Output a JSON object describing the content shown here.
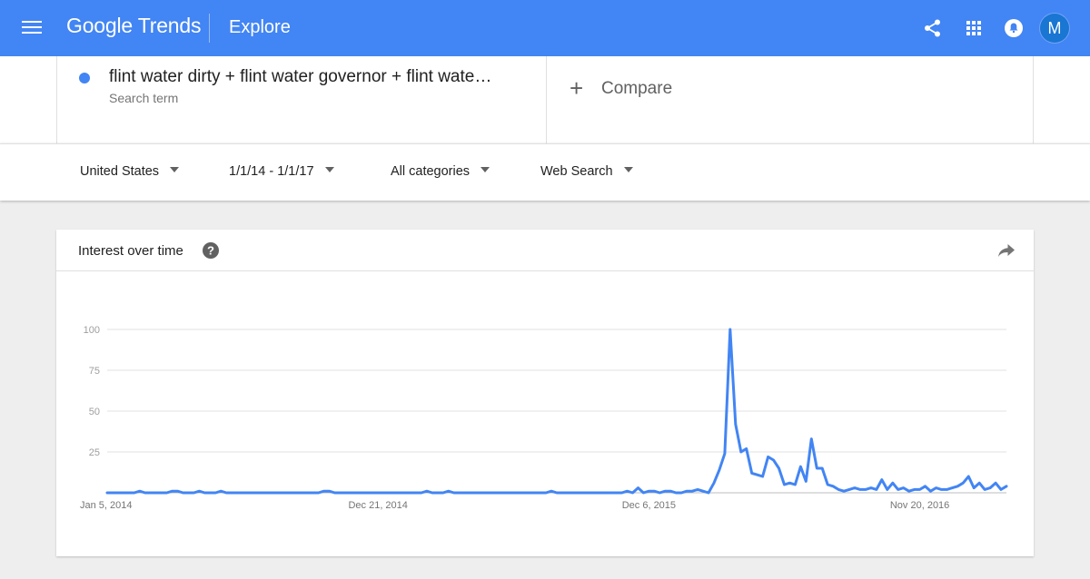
{
  "header": {
    "logo": "Google Trends",
    "section": "Explore",
    "avatar_letter": "M",
    "icons": [
      "menu-icon",
      "share-icon",
      "apps-icon",
      "notifications-icon"
    ],
    "accent_color": "#4285f4"
  },
  "search_term": {
    "text": "flint water dirty + flint water governor + flint wate…",
    "type": "Search term",
    "color": "#4285f4"
  },
  "compare": {
    "label": "Compare"
  },
  "filters": [
    {
      "label": "United States"
    },
    {
      "label": "1/1/14 - 1/1/17"
    },
    {
      "label": "All categories"
    },
    {
      "label": "Web Search"
    }
  ],
  "chart_card": {
    "title": "Interest over time"
  },
  "chart_data": {
    "type": "line",
    "y_ticks": [
      "100",
      "75",
      "50",
      "25"
    ],
    "ylim": [
      0,
      100
    ],
    "x_tick_labels": [
      "Jan 5, 2014",
      "Dec 21, 2014",
      "Dec 6, 2015",
      "Nov 20, 2016"
    ],
    "x_tick_indices": [
      0,
      50,
      100,
      150
    ],
    "grid": true,
    "series": [
      {
        "color": "#4285f4",
        "values": [
          0,
          0,
          0,
          0,
          0,
          0,
          1,
          0,
          0,
          0,
          0,
          0,
          1,
          1,
          0,
          0,
          0,
          1,
          0,
          0,
          0,
          1,
          0,
          0,
          0,
          0,
          0,
          0,
          0,
          0,
          0,
          0,
          0,
          0,
          0,
          0,
          0,
          0,
          0,
          0,
          1,
          1,
          0,
          0,
          0,
          0,
          0,
          0,
          0,
          0,
          0,
          0,
          0,
          0,
          0,
          0,
          0,
          0,
          0,
          1,
          0,
          0,
          0,
          1,
          0,
          0,
          0,
          0,
          0,
          0,
          0,
          0,
          0,
          0,
          0,
          0,
          0,
          0,
          0,
          0,
          0,
          0,
          1,
          0,
          0,
          0,
          0,
          0,
          0,
          0,
          0,
          0,
          0,
          0,
          0,
          0,
          1,
          0,
          3,
          0,
          1,
          1,
          0,
          1,
          1,
          0,
          0,
          1,
          1,
          2,
          1,
          0,
          6,
          14,
          24,
          100,
          42,
          25,
          27,
          12,
          11,
          10,
          22,
          20,
          15,
          5,
          6,
          5,
          16,
          7,
          33,
          15,
          15,
          5,
          4,
          2,
          1,
          2,
          3,
          2,
          2,
          3,
          2,
          8,
          2,
          6,
          2,
          3,
          1,
          2,
          2,
          4,
          1,
          3,
          2,
          2,
          3,
          4,
          6,
          10,
          3,
          6,
          2,
          3,
          6,
          2,
          4
        ]
      }
    ]
  }
}
